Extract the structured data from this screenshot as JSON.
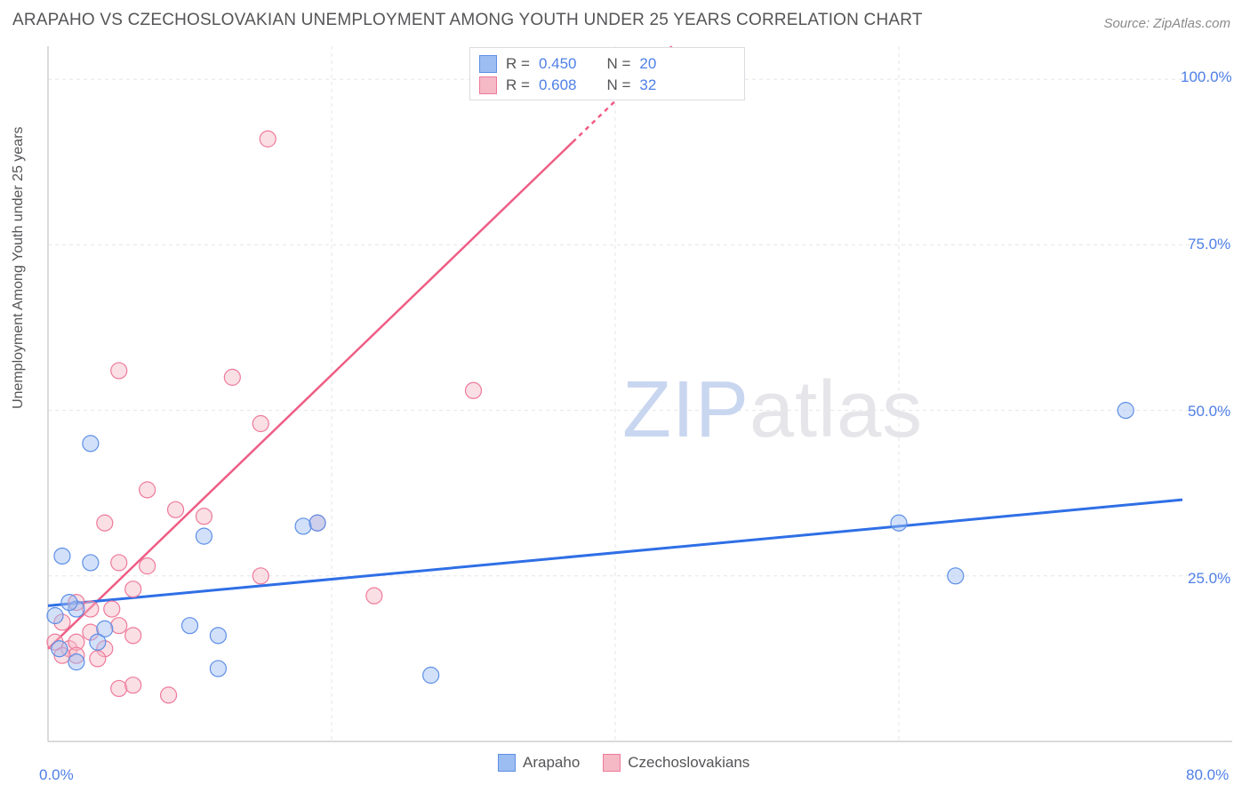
{
  "title": "ARAPAHO VS CZECHOSLOVAKIAN UNEMPLOYMENT AMONG YOUTH UNDER 25 YEARS CORRELATION CHART",
  "source": "Source: ZipAtlas.com",
  "ylabel": "Unemployment Among Youth under 25 years",
  "watermark": {
    "part1": "ZIP",
    "part2": "atlas"
  },
  "chart": {
    "type": "scatter",
    "background_color": "#ffffff",
    "grid_color": "#e6e6ea",
    "grid_dash": "4 4",
    "axis_line_color": "#cfcfd4",
    "tick_label_color": "#4f7fe6",
    "tick_fontsize": 17,
    "xlim": [
      0,
      80
    ],
    "ylim": [
      0,
      105
    ],
    "xticks": [
      {
        "v": 0,
        "label": "0.0%"
      },
      {
        "v": 80,
        "label": "80.0%"
      }
    ],
    "yticks": [
      {
        "v": 25,
        "label": "25.0%"
      },
      {
        "v": 50,
        "label": "50.0%"
      },
      {
        "v": 75,
        "label": "75.0%"
      },
      {
        "v": 100,
        "label": "100.0%"
      }
    ],
    "xgrid_minor": [
      20,
      40,
      60
    ],
    "marker_radius": 9,
    "marker_stroke_width": 1.2,
    "marker_fill_opacity": 0.45,
    "series": [
      {
        "name": "Arapaho",
        "color_fill": "#9cbdf1",
        "color_stroke": "#5e8ee6",
        "trend": {
          "x1": 0,
          "y1": 20.5,
          "x2": 80,
          "y2": 36.5,
          "color": "#2f6fe6",
          "width": 3,
          "dash": "none"
        },
        "stats": {
          "R": "0.450",
          "N": "20"
        },
        "points": [
          {
            "x": 3,
            "y": 45
          },
          {
            "x": 1,
            "y": 28
          },
          {
            "x": 2,
            "y": 20
          },
          {
            "x": 3,
            "y": 27
          },
          {
            "x": 0.5,
            "y": 19
          },
          {
            "x": 2,
            "y": 12
          },
          {
            "x": 12,
            "y": 11
          },
          {
            "x": 12,
            "y": 16
          },
          {
            "x": 11,
            "y": 31
          },
          {
            "x": 18,
            "y": 32.5
          },
          {
            "x": 19,
            "y": 33
          },
          {
            "x": 10,
            "y": 17.5
          },
          {
            "x": 4,
            "y": 17
          },
          {
            "x": 27,
            "y": 10
          },
          {
            "x": 60,
            "y": 33
          },
          {
            "x": 64,
            "y": 25
          },
          {
            "x": 76,
            "y": 50
          },
          {
            "x": 1.5,
            "y": 21
          },
          {
            "x": 0.8,
            "y": 14
          },
          {
            "x": 3.5,
            "y": 15
          }
        ]
      },
      {
        "name": "Czechoslovakians",
        "color_fill": "#f5b9c6",
        "color_stroke": "#ee7a9a",
        "trend": {
          "x1": 0,
          "y1": 14,
          "x2": 44,
          "y2": 105,
          "color": "#ee5d84",
          "width": 2.5,
          "dash_tail": "5 5",
          "dash_split_x": 37
        },
        "stats": {
          "R": "0.608",
          "N": "32"
        },
        "points": [
          {
            "x": 5,
            "y": 56
          },
          {
            "x": 13,
            "y": 55
          },
          {
            "x": 15.5,
            "y": 91
          },
          {
            "x": 7,
            "y": 38
          },
          {
            "x": 9,
            "y": 35
          },
          {
            "x": 11,
            "y": 34
          },
          {
            "x": 15,
            "y": 48
          },
          {
            "x": 19,
            "y": 33
          },
          {
            "x": 4,
            "y": 33
          },
          {
            "x": 5,
            "y": 27
          },
          {
            "x": 6,
            "y": 23
          },
          {
            "x": 7,
            "y": 26.5
          },
          {
            "x": 3,
            "y": 20
          },
          {
            "x": 2,
            "y": 21
          },
          {
            "x": 1,
            "y": 18
          },
          {
            "x": 1.5,
            "y": 14
          },
          {
            "x": 2,
            "y": 15
          },
          {
            "x": 3,
            "y": 16.5
          },
          {
            "x": 4,
            "y": 14
          },
          {
            "x": 5,
            "y": 17.5
          },
          {
            "x": 6,
            "y": 16
          },
          {
            "x": 2,
            "y": 13
          },
          {
            "x": 3.5,
            "y": 12.5
          },
          {
            "x": 1,
            "y": 13
          },
          {
            "x": 5,
            "y": 8
          },
          {
            "x": 6,
            "y": 8.5
          },
          {
            "x": 8.5,
            "y": 7
          },
          {
            "x": 15,
            "y": 25
          },
          {
            "x": 23,
            "y": 22
          },
          {
            "x": 30,
            "y": 53
          },
          {
            "x": 0.5,
            "y": 15
          },
          {
            "x": 4.5,
            "y": 20
          }
        ]
      }
    ],
    "legend_bottom": [
      {
        "label": "Arapaho",
        "fill": "#9cbdf1",
        "stroke": "#5e8ee6"
      },
      {
        "label": "Czechoslovakians",
        "fill": "#f5b9c6",
        "stroke": "#ee7a9a"
      }
    ]
  }
}
